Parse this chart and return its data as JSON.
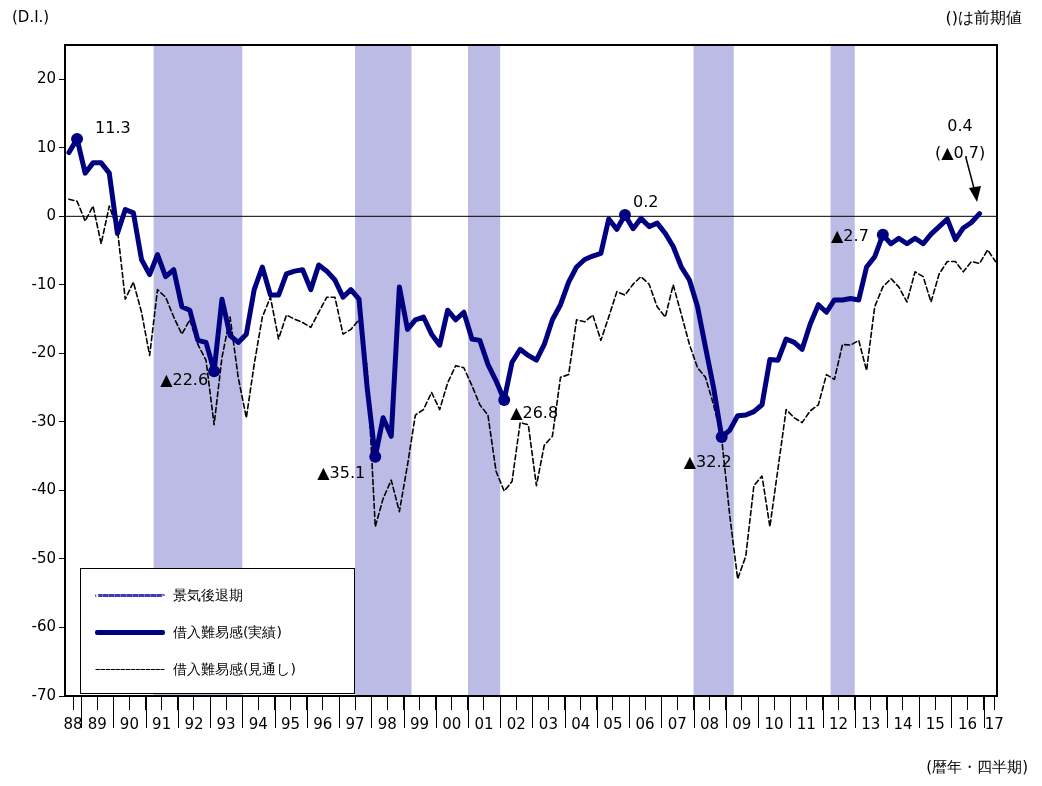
{
  "chart_data": {
    "type": "line",
    "ylabel": "(D.I.)",
    "xlabel": "(暦年・四半期)",
    "annotations": [
      "()は前期値",
      {
        "text": "11.3",
        "x": "1988-11-15",
        "y": 11.3
      },
      {
        "text": "▲22.6",
        "x": "1993-02-15",
        "y": -22.6
      },
      {
        "text": "▲35.1",
        "x": "1998-02-15",
        "y": -35.1
      },
      {
        "text": "▲26.8",
        "x": "2002-02-15",
        "y": -26.8
      },
      {
        "text": "0.2",
        "x": "2005-11-15",
        "y": 0.2
      },
      {
        "text": "▲32.2",
        "x": "2008-11-15",
        "y": -32.2
      },
      {
        "text": "▲2.7",
        "x": "2013-11-15",
        "y": -2.7
      },
      "0.4",
      "(▲0.7)"
    ],
    "x": [
      "1988-08-15",
      "1988-11-15",
      "1989-02-15",
      "1989-05-15",
      "1989-08-15",
      "1989-11-15",
      "1990-02-15",
      "1990-05-15",
      "1990-08-15",
      "1990-11-15",
      "1991-02-15",
      "1991-05-15",
      "1991-08-15",
      "1991-11-15",
      "1992-02-15",
      "1992-05-15",
      "1992-08-15",
      "1992-11-15",
      "1993-02-15",
      "1993-05-15",
      "1993-08-15",
      "1993-11-15",
      "1994-02-15",
      "1994-05-15",
      "1994-08-15",
      "1994-11-15",
      "1995-02-15",
      "1995-05-15",
      "1995-08-15",
      "1995-11-15",
      "1996-02-15",
      "1996-05-15",
      "1996-08-15",
      "1996-11-15",
      "1997-02-15",
      "1997-05-15",
      "1997-08-15",
      "1997-11-15",
      "1998-02-15",
      "1998-05-15",
      "1998-08-15",
      "1998-11-15",
      "1999-02-15",
      "1999-05-15",
      "1999-08-15",
      "1999-11-15",
      "2000-02-15",
      "2000-05-15",
      "2000-08-15",
      "2000-11-15",
      "2001-02-15",
      "2001-05-15",
      "2001-08-15",
      "2001-11-15",
      "2002-02-15",
      "2002-05-15",
      "2002-08-15",
      "2002-11-15",
      "2003-02-15",
      "2003-05-15",
      "2003-08-15",
      "2003-11-15",
      "2004-02-15",
      "2004-05-15",
      "2004-08-15",
      "2004-11-15",
      "2005-02-15",
      "2005-05-15",
      "2005-08-15",
      "2005-11-15",
      "2006-02-15",
      "2006-05-15",
      "2006-08-15",
      "2006-11-15",
      "2007-02-15",
      "2007-05-15",
      "2007-08-15",
      "2007-11-15",
      "2008-02-15",
      "2008-05-15",
      "2008-08-15",
      "2008-11-15",
      "2009-02-15",
      "2009-05-15",
      "2009-08-15",
      "2009-11-15",
      "2010-02-15",
      "2010-05-15",
      "2010-08-15",
      "2010-11-15",
      "2011-02-15",
      "2011-05-15",
      "2011-08-15",
      "2011-11-15",
      "2012-02-15",
      "2012-05-15",
      "2012-08-15",
      "2012-11-15",
      "2013-02-15",
      "2013-05-15",
      "2013-08-15",
      "2013-11-15",
      "2014-02-15",
      "2014-05-15",
      "2014-08-15",
      "2014-11-15",
      "2015-02-15",
      "2015-05-15",
      "2015-08-15",
      "2015-11-15",
      "2016-02-15",
      "2016-05-15",
      "2016-08-15",
      "2016-11-15",
      "2017-02-15",
      "2017-05-15"
    ],
    "series": [
      {
        "name": "借入難易感(実績)",
        "color": "#000080",
        "line_style": "solid",
        "values": [
          9.3,
          11.3,
          6.3,
          7.8,
          7.8,
          6.3,
          -2.5,
          1.0,
          0.5,
          -6.3,
          -8.5,
          -5.6,
          -8.8,
          -7.8,
          -13.2,
          -13.7,
          -18.1,
          -18.4,
          -22.6,
          -12.1,
          -17.4,
          -18.4,
          -17.2,
          -10.7,
          -7.4,
          -11.5,
          -11.5,
          -8.4,
          -8.0,
          -7.8,
          -10.7,
          -7.1,
          -8.0,
          -9.3,
          -11.8,
          -10.7,
          -12.1,
          -25.0,
          -35.1,
          -29.4,
          -32.1,
          -10.3,
          -16.5,
          -15.1,
          -14.7,
          -17.2,
          -18.8,
          -13.7,
          -15.1,
          -14.0,
          -17.9,
          -18.1,
          -21.6,
          -24.0,
          -26.8,
          -21.3,
          -19.4,
          -20.3,
          -21.0,
          -18.7,
          -15.1,
          -12.9,
          -9.6,
          -7.4,
          -6.3,
          -5.8,
          -5.4,
          -0.4,
          -1.9,
          0.2,
          -1.8,
          -0.3,
          -1.5,
          -1.0,
          -2.5,
          -4.4,
          -7.4,
          -9.3,
          -13.2,
          -19.1,
          -25.0,
          -32.2,
          -31.2,
          -29.1,
          -29.0,
          -28.5,
          -27.5,
          -20.9,
          -21.0,
          -17.9,
          -18.4,
          -19.4,
          -15.7,
          -12.9,
          -14.0,
          -12.2,
          -12.2,
          -12.0,
          -12.2,
          -7.4,
          -5.9,
          -2.7,
          -4.0,
          -3.2,
          -4.0,
          -3.2,
          -4.0,
          -2.6,
          -1.5,
          -0.4,
          -3.4,
          -1.7,
          -0.9,
          0.4,
          null,
          null
        ]
      },
      {
        "name": "借入難易感(見通し)",
        "color": "#000000",
        "line_style": "dashed",
        "values": [
          2.5,
          2.2,
          -0.7,
          1.5,
          -4.0,
          1.5,
          -1.9,
          -12.1,
          -9.6,
          -14.0,
          -20.3,
          -10.7,
          -11.8,
          -14.7,
          -17.2,
          -15.1,
          -18.7,
          -21.0,
          -30.4,
          -20.6,
          -14.7,
          -23.5,
          -29.4,
          -21.6,
          -14.7,
          -11.8,
          -17.9,
          -14.4,
          -15.0,
          -15.5,
          -16.2,
          -14.0,
          -11.8,
          -11.8,
          -17.2,
          -16.5,
          -15.1,
          -22.0,
          -45.3,
          -41.2,
          -38.5,
          -43.1,
          -36.3,
          -29.0,
          -28.2,
          -25.7,
          -28.2,
          -24.3,
          -21.8,
          -22.1,
          -24.7,
          -27.5,
          -29.0,
          -37.2,
          -40.1,
          -38.7,
          -30.1,
          -30.4,
          -39.3,
          -33.4,
          -32.1,
          -23.5,
          -23.1,
          -15.1,
          -15.4,
          -14.4,
          -18.1,
          -14.7,
          -11.0,
          -11.5,
          -9.9,
          -8.8,
          -9.9,
          -13.2,
          -14.7,
          -10.0,
          -14.3,
          -18.7,
          -22.1,
          -23.5,
          -27.5,
          -32.4,
          -43.7,
          -52.9,
          -49.6,
          -39.3,
          -37.9,
          -45.3,
          -36.8,
          -28.2,
          -29.4,
          -30.1,
          -28.4,
          -27.5,
          -23.1,
          -23.8,
          -18.7,
          -18.8,
          -18.1,
          -22.5,
          -13.2,
          -10.3,
          -9.1,
          -10.3,
          -12.5,
          -8.1,
          -8.8,
          -12.5,
          -8.4,
          -6.6,
          -6.6,
          -8.1,
          -6.6,
          -6.9,
          -4.9,
          -6.6
        ]
      }
    ],
    "bands": [
      {
        "axis": "x",
        "from": "1991-04",
        "to": "1994-01",
        "label": "景気後退期",
        "color": "#3c3cb4"
      },
      {
        "axis": "x",
        "from": "1997-07",
        "to": "1999-04",
        "color": "#3c3cb4"
      },
      {
        "axis": "x",
        "from": "2001-01",
        "to": "2002-01",
        "color": "#3c3cb4"
      },
      {
        "axis": "x",
        "from": "2008-01",
        "to": "2009-04",
        "color": "#3c3cb4"
      },
      {
        "axis": "x",
        "from": "2012-04",
        "to": "2013-01",
        "color": "#3c3cb4"
      }
    ],
    "ref_lines": [
      {
        "axis": "y",
        "value": 0,
        "color": "#000000"
      }
    ],
    "xlim": [
      "1988-07",
      "2017-06"
    ],
    "xticks": [
      {
        "value": "1988-10",
        "label": "88"
      },
      {
        "value": "1989",
        "label": null
      },
      {
        "value": "1989-07",
        "label": "89"
      },
      {
        "value": "1990",
        "label": null
      },
      {
        "value": "1990-07",
        "label": "90"
      },
      {
        "value": "1991",
        "label": null
      },
      {
        "value": "1991-07",
        "label": "91"
      },
      {
        "value": "1992",
        "label": null
      },
      {
        "value": "1992-07",
        "label": "92"
      },
      {
        "value": "1993",
        "label": null
      },
      {
        "value": "1993-07",
        "label": "93"
      },
      {
        "value": "1994",
        "label": null
      },
      {
        "value": "1994-07",
        "label": "94"
      },
      {
        "value": "1995",
        "label": null
      },
      {
        "value": "1995-07",
        "label": "95"
      },
      {
        "value": "1996",
        "label": null
      },
      {
        "value": "1996-07",
        "label": "96"
      },
      {
        "value": "1997",
        "label": null
      },
      {
        "value": "1997-07",
        "label": "97"
      },
      {
        "value": "1998",
        "label": null
      },
      {
        "value": "1998-07",
        "label": "98"
      },
      {
        "value": "1999",
        "label": null
      },
      {
        "value": "1999-07",
        "label": "99"
      },
      {
        "value": "2000",
        "label": null
      },
      {
        "value": "2000-07",
        "label": "00"
      },
      {
        "value": "2001",
        "label": null
      },
      {
        "value": "2001-07",
        "label": "01"
      },
      {
        "value": "2002",
        "label": null
      },
      {
        "value": "2002-07",
        "label": "02"
      },
      {
        "value": "2003",
        "label": null
      },
      {
        "value": "2003-07",
        "label": "03"
      },
      {
        "value": "2004",
        "label": null
      },
      {
        "value": "2004-07",
        "label": "04"
      },
      {
        "value": "2005",
        "label": null
      },
      {
        "value": "2005-07",
        "label": "05"
      },
      {
        "value": "2006",
        "label": null
      },
      {
        "value": "2006-07",
        "label": "06"
      },
      {
        "value": "2007",
        "label": null
      },
      {
        "value": "2007-07",
        "label": "07"
      },
      {
        "value": "2008",
        "label": null
      },
      {
        "value": "2008-07",
        "label": "08"
      },
      {
        "value": "2009",
        "label": null
      },
      {
        "value": "2009-07",
        "label": "09"
      },
      {
        "value": "2010",
        "label": null
      },
      {
        "value": "2010-07",
        "label": "10"
      },
      {
        "value": "2011",
        "label": null
      },
      {
        "value": "2011-07",
        "label": "11"
      },
      {
        "value": "2012",
        "label": null
      },
      {
        "value": "2012-07",
        "label": "12"
      },
      {
        "value": "2013",
        "label": null
      },
      {
        "value": "2013-07",
        "label": "13"
      },
      {
        "value": "2014",
        "label": null
      },
      {
        "value": "2014-07",
        "label": "14"
      },
      {
        "value": "2015",
        "label": null
      },
      {
        "value": "2015-07",
        "label": "15"
      },
      {
        "value": "2016",
        "label": null
      },
      {
        "value": "2016-07",
        "label": "16"
      },
      {
        "value": "2017",
        "label": null
      },
      {
        "value": "2017-05",
        "label": "17"
      }
    ],
    "ylim": [
      -70,
      25
    ],
    "yticks": [
      -70,
      -60,
      -50,
      -40,
      -30,
      -20,
      -10,
      0,
      10,
      20
    ],
    "grid": false,
    "legend": "bottom left",
    "marker": "none"
  }
}
